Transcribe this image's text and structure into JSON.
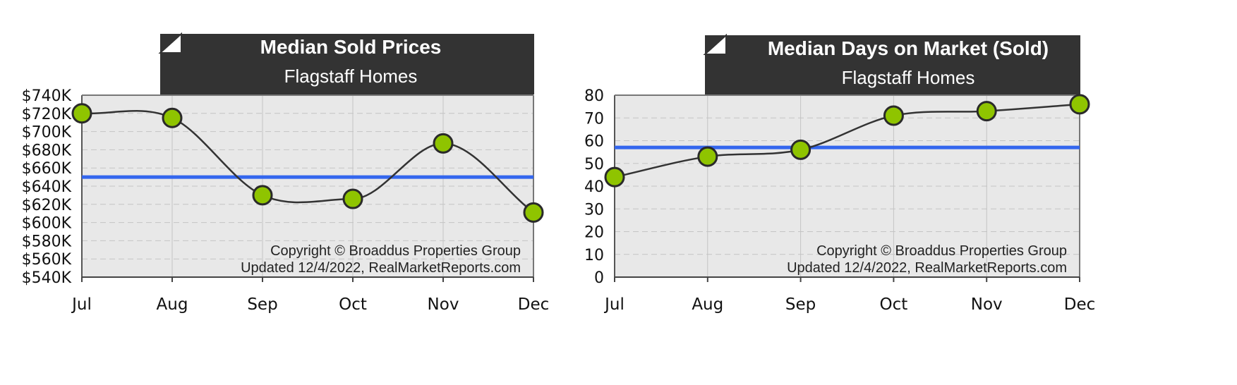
{
  "chart_data": [
    {
      "type": "line",
      "title": "Median Sold Prices",
      "subtitle": "Flagstaff Homes",
      "categories": [
        "Jul",
        "Aug",
        "Sep",
        "Oct",
        "Nov",
        "Dec"
      ],
      "values": [
        720000,
        715000,
        630000,
        626000,
        687000,
        611000
      ],
      "average": 650000,
      "ylim": [
        540000,
        740000
      ],
      "yticks": [
        "$540K",
        "$560K",
        "$580K",
        "$600K",
        "$620K",
        "$640K",
        "$660K",
        "$680K",
        "$700K",
        "$720K",
        "$740K"
      ],
      "copyright": "Copyright © Broaddus Properties Group",
      "updated": "Updated 12/4/2022, RealMarketReports.com",
      "grid": true
    },
    {
      "type": "line",
      "title": "Median Days on Market (Sold)",
      "subtitle": "Flagstaff Homes",
      "categories": [
        "Jul",
        "Aug",
        "Sep",
        "Oct",
        "Nov",
        "Dec"
      ],
      "values": [
        44,
        53,
        56,
        71,
        73,
        76
      ],
      "average": 57,
      "ylim": [
        0,
        80
      ],
      "yticks": [
        "0",
        "10",
        "20",
        "30",
        "40",
        "50",
        "60",
        "70",
        "80"
      ],
      "copyright": "Copyright © Broaddus Properties Group",
      "updated": "Updated 12/4/2022, RealMarketReports.com",
      "grid": true
    }
  ],
  "colors": {
    "plot_bg": "#e8e8e8",
    "title_bg": "#333333",
    "line": "#333333",
    "marker_fill": "#8fc400",
    "marker_stroke": "#2a2a2a",
    "average_line": "#3366ee",
    "grid": "#c4c4c4"
  }
}
